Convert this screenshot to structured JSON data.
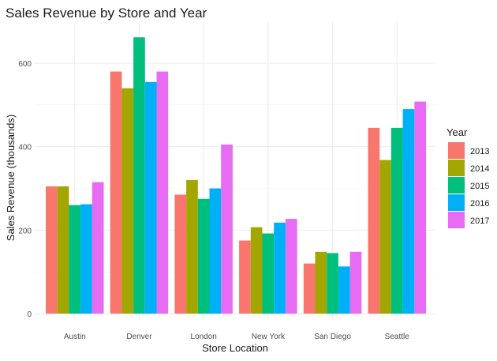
{
  "chart_data": {
    "type": "bar",
    "title": "Sales Revenue by Store and Year",
    "xlabel": "Store Location",
    "ylabel": "Sales Revenue (thousands)",
    "categories": [
      "Austin",
      "Denver",
      "London",
      "New York",
      "San Diego",
      "Seattle"
    ],
    "ylim": [
      0,
      700
    ],
    "yticks": [
      0,
      200,
      400,
      600
    ],
    "y_tick_labels": [
      "0",
      "200",
      "400",
      "600"
    ],
    "legend_title": "Year",
    "legend_position": "right",
    "grid": true,
    "series": [
      {
        "name": "2013",
        "color": "#F8766D",
        "values": [
          305,
          580,
          285,
          175,
          120,
          445
        ]
      },
      {
        "name": "2014",
        "color": "#A3A500",
        "values": [
          305,
          540,
          320,
          207,
          148,
          368
        ]
      },
      {
        "name": "2015",
        "color": "#00BF7D",
        "values": [
          260,
          662,
          275,
          192,
          145,
          445
        ]
      },
      {
        "name": "2016",
        "color": "#00B0F6",
        "values": [
          262,
          555,
          300,
          218,
          113,
          490
        ]
      },
      {
        "name": "2017",
        "color": "#E76BF3",
        "values": [
          315,
          580,
          405,
          227,
          148,
          508
        ]
      }
    ]
  }
}
